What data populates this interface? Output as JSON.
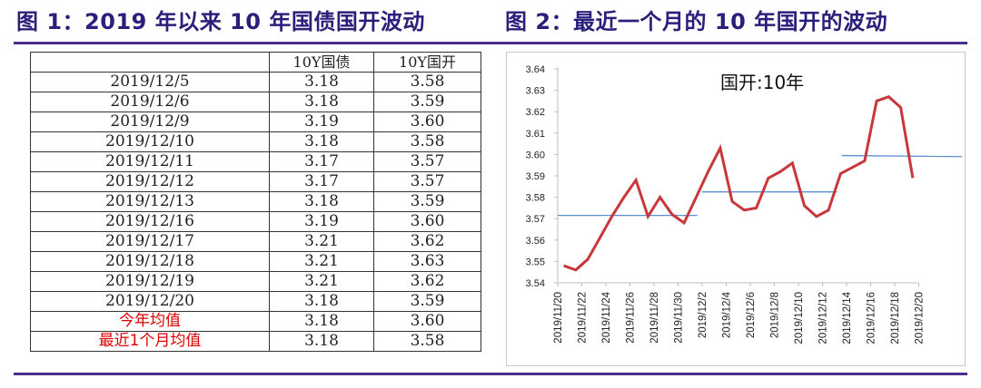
{
  "figure1": {
    "title": "图 1：2019 年以来 10 年国债国开波动",
    "table": {
      "headers": [
        "",
        "10Y国债",
        "10Y国开"
      ],
      "rows": [
        [
          "2019/12/5",
          "3.18",
          "3.58"
        ],
        [
          "2019/12/6",
          "3.18",
          "3.59"
        ],
        [
          "2019/12/9",
          "3.19",
          "3.60"
        ],
        [
          "2019/12/10",
          "3.18",
          "3.58"
        ],
        [
          "2019/12/11",
          "3.17",
          "3.57"
        ],
        [
          "2019/12/12",
          "3.17",
          "3.57"
        ],
        [
          "2019/12/13",
          "3.18",
          "3.59"
        ],
        [
          "2019/12/16",
          "3.19",
          "3.60"
        ],
        [
          "2019/12/17",
          "3.21",
          "3.62"
        ],
        [
          "2019/12/18",
          "3.21",
          "3.63"
        ],
        [
          "2019/12/19",
          "3.21",
          "3.62"
        ],
        [
          "2019/12/20",
          "3.18",
          "3.59"
        ]
      ],
      "summary_rows": [
        [
          "今年均值",
          "3.18",
          "3.60"
        ],
        [
          "最近1个月均值",
          "3.18",
          "3.58"
        ]
      ],
      "summary_label_color": "#e00000"
    }
  },
  "figure2": {
    "title": "图 2：最近一个月的 10 年国开的波动"
  },
  "colors": {
    "title_text": "#2a1f7a",
    "rule": "#4b2e8f",
    "line": "#c8373a",
    "avg_line": "#5b8fd0"
  },
  "chart_data": {
    "type": "line",
    "title": "国开:10年",
    "xlabel": "",
    "ylabel": "",
    "ylim": [
      3.54,
      3.64
    ],
    "yticks": [
      "3.64",
      "3.63",
      "3.62",
      "3.61",
      "3.60",
      "3.59",
      "3.58",
      "3.57",
      "3.56",
      "3.55",
      "3.54"
    ],
    "xtick_labels": [
      "2019/11/20",
      "2019/11/22",
      "2019/11/24",
      "2019/11/26",
      "2019/11/28",
      "2019/11/30",
      "2019/12/2",
      "2019/12/4",
      "2019/12/6",
      "2019/12/8",
      "2019/12/10",
      "2019/12/12",
      "2019/12/14",
      "2019/12/16",
      "2019/12/18",
      "2019/12/20"
    ],
    "grid": false,
    "legend": null,
    "series": [
      {
        "name": "国开:10年",
        "color": "#c8373a",
        "x_index": [
          0,
          0.5,
          1,
          1.5,
          2,
          2.5,
          3,
          3.5,
          4,
          4.5,
          5,
          5.5,
          6,
          6.5,
          7,
          7.5,
          8,
          8.5,
          9,
          9.5,
          10,
          10.5,
          11,
          11.5,
          12,
          12.5,
          13,
          13.5,
          14,
          14.5
        ],
        "values": [
          3.548,
          3.546,
          3.551,
          3.561,
          3.571,
          3.58,
          3.588,
          3.571,
          3.58,
          3.572,
          3.568,
          3.58,
          3.592,
          3.603,
          3.578,
          3.574,
          3.575,
          3.589,
          3.592,
          3.596,
          3.576,
          3.571,
          3.574,
          3.591,
          3.594,
          3.597,
          3.625,
          3.627,
          3.622,
          3.589
        ]
      }
    ],
    "average_segments": [
      {
        "x_start": 0,
        "x_end": 5.8,
        "value": 3.5715
      },
      {
        "x_start": 6.0,
        "x_end": 11.6,
        "value": 3.5825
      },
      {
        "x_start": 11.8,
        "x_end": 16.8,
        "value": 3.5995,
        "value_end": 3.599
      }
    ]
  }
}
